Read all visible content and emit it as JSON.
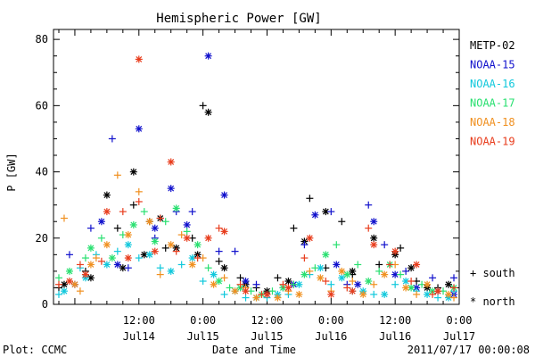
{
  "chart_data": {
    "type": "scatter",
    "title": "Hemispheric Power [GW]",
    "xlabel": "Date and Time",
    "ylabel": "P [GW]",
    "ylim": [
      0,
      83
    ],
    "xlim": [
      -4,
      72
    ],
    "x_units": "hours since 2011-07-14 00:00 UT",
    "grid": false,
    "legend_position": "right",
    "y_ticks": [
      0,
      20,
      40,
      60,
      80
    ],
    "x_ticks": [
      {
        "x": 12,
        "time": "12:00",
        "date": "Jul14"
      },
      {
        "x": 24,
        "time": "0:00",
        "date": "Jul15"
      },
      {
        "x": 36,
        "time": "12:00",
        "date": "Jul15"
      },
      {
        "x": 48,
        "time": "0:00",
        "date": "Jul16"
      },
      {
        "x": 60,
        "time": "12:00",
        "date": "Jul16"
      },
      {
        "x": 72,
        "time": "0:00",
        "date": "Jul17"
      }
    ],
    "marker_legend": [
      {
        "symbol": "+",
        "label": "south"
      },
      {
        "symbol": "*",
        "label": "north"
      }
    ],
    "series": [
      {
        "name": "METP-02",
        "color": "#000000",
        "south": [
          [
            -3,
            5
          ],
          [
            2,
            10
          ],
          [
            8,
            23
          ],
          [
            11,
            30
          ],
          [
            14,
            25
          ],
          [
            17,
            17
          ],
          [
            22,
            20
          ],
          [
            24,
            60
          ],
          [
            27,
            13
          ],
          [
            31,
            8
          ],
          [
            34,
            5
          ],
          [
            38,
            8
          ],
          [
            41,
            23
          ],
          [
            44,
            32
          ],
          [
            47,
            11
          ],
          [
            50,
            25
          ],
          [
            52,
            9
          ],
          [
            57,
            12
          ],
          [
            61,
            17
          ],
          [
            64,
            7
          ],
          [
            68,
            5
          ]
        ],
        "north": [
          [
            -2,
            6
          ],
          [
            3,
            8
          ],
          [
            6,
            33
          ],
          [
            9,
            11
          ],
          [
            11,
            40
          ],
          [
            13,
            15
          ],
          [
            16,
            26
          ],
          [
            19,
            17
          ],
          [
            23,
            15
          ],
          [
            25,
            58
          ],
          [
            28,
            11
          ],
          [
            32,
            6
          ],
          [
            36,
            4
          ],
          [
            40,
            7
          ],
          [
            43,
            19
          ],
          [
            47,
            28
          ],
          [
            52,
            10
          ],
          [
            56,
            20
          ],
          [
            60,
            15
          ],
          [
            63,
            11
          ],
          [
            66,
            5
          ],
          [
            70,
            6
          ]
        ]
      },
      {
        "name": "NOAA-15",
        "color": "#1010cc",
        "south": [
          [
            -1,
            15
          ],
          [
            3,
            23
          ],
          [
            7,
            50
          ],
          [
            10,
            11
          ],
          [
            15,
            20
          ],
          [
            19,
            28
          ],
          [
            22,
            28
          ],
          [
            27,
            16
          ],
          [
            30,
            16
          ],
          [
            34,
            6
          ],
          [
            39,
            5
          ],
          [
            43,
            18
          ],
          [
            48,
            28
          ],
          [
            51,
            6
          ],
          [
            55,
            30
          ],
          [
            58,
            18
          ],
          [
            62,
            10
          ],
          [
            67,
            8
          ],
          [
            71,
            8
          ]
        ],
        "north": [
          [
            0,
            6
          ],
          [
            5,
            25
          ],
          [
            8,
            12
          ],
          [
            12,
            53
          ],
          [
            15,
            23
          ],
          [
            18,
            35
          ],
          [
            21,
            24
          ],
          [
            25,
            75
          ],
          [
            28,
            33
          ],
          [
            32,
            7
          ],
          [
            36,
            3
          ],
          [
            41,
            6
          ],
          [
            45,
            27
          ],
          [
            49,
            12
          ],
          [
            53,
            6
          ],
          [
            56,
            25
          ],
          [
            60,
            9
          ],
          [
            64,
            5
          ],
          [
            68,
            4
          ],
          [
            71,
            3
          ]
        ]
      },
      {
        "name": "NOAA-16",
        "color": "#10c8dc",
        "south": [
          [
            -3,
            3
          ],
          [
            1,
            11
          ],
          [
            4,
            15
          ],
          [
            8,
            16
          ],
          [
            12,
            14
          ],
          [
            16,
            11
          ],
          [
            20,
            12
          ],
          [
            24,
            7
          ],
          [
            28,
            3
          ],
          [
            32,
            2
          ],
          [
            36,
            2
          ],
          [
            40,
            3
          ],
          [
            44,
            9
          ],
          [
            48,
            6
          ],
          [
            52,
            4
          ],
          [
            56,
            3
          ],
          [
            60,
            6
          ],
          [
            64,
            4
          ],
          [
            68,
            2
          ],
          [
            71,
            4
          ]
        ],
        "north": [
          [
            -2,
            4
          ],
          [
            2,
            8
          ],
          [
            6,
            12
          ],
          [
            10,
            18
          ],
          [
            14,
            15
          ],
          [
            18,
            10
          ],
          [
            22,
            14
          ],
          [
            26,
            9
          ],
          [
            30,
            4
          ],
          [
            34,
            2
          ],
          [
            38,
            3
          ],
          [
            42,
            6
          ],
          [
            46,
            11
          ],
          [
            50,
            8
          ],
          [
            54,
            4
          ],
          [
            58,
            3
          ],
          [
            62,
            7
          ],
          [
            66,
            3
          ],
          [
            70,
            2
          ]
        ]
      },
      {
        "name": "NOAA-17",
        "color": "#28e070",
        "south": [
          [
            -3,
            8
          ],
          [
            2,
            14
          ],
          [
            5,
            20
          ],
          [
            9,
            21
          ],
          [
            13,
            28
          ],
          [
            17,
            25
          ],
          [
            21,
            22
          ],
          [
            25,
            11
          ],
          [
            29,
            5
          ],
          [
            33,
            4
          ],
          [
            37,
            4
          ],
          [
            41,
            6
          ],
          [
            45,
            11
          ],
          [
            49,
            18
          ],
          [
            53,
            12
          ],
          [
            57,
            10
          ],
          [
            61,
            9
          ],
          [
            65,
            6
          ],
          [
            69,
            4
          ]
        ],
        "north": [
          [
            -1,
            10
          ],
          [
            3,
            17
          ],
          [
            7,
            14
          ],
          [
            11,
            24
          ],
          [
            15,
            19
          ],
          [
            19,
            29
          ],
          [
            23,
            18
          ],
          [
            27,
            7
          ],
          [
            31,
            5
          ],
          [
            35,
            3
          ],
          [
            39,
            5
          ],
          [
            43,
            9
          ],
          [
            47,
            15
          ],
          [
            51,
            9
          ],
          [
            55,
            7
          ],
          [
            59,
            12
          ],
          [
            63,
            5
          ],
          [
            67,
            4
          ],
          [
            71,
            5
          ]
        ]
      },
      {
        "name": "NOAA-18",
        "color": "#f09020",
        "south": [
          [
            -2,
            26
          ],
          [
            1,
            4
          ],
          [
            4,
            14
          ],
          [
            8,
            39
          ],
          [
            12,
            34
          ],
          [
            16,
            9
          ],
          [
            20,
            21
          ],
          [
            24,
            14
          ],
          [
            28,
            8
          ],
          [
            32,
            5
          ],
          [
            36,
            3
          ],
          [
            40,
            4
          ],
          [
            44,
            10
          ],
          [
            48,
            4
          ],
          [
            52,
            7
          ],
          [
            56,
            6
          ],
          [
            60,
            12
          ],
          [
            64,
            3
          ],
          [
            68,
            4
          ],
          [
            71,
            2
          ]
        ],
        "north": [
          [
            0,
            6
          ],
          [
            3,
            12
          ],
          [
            6,
            18
          ],
          [
            10,
            21
          ],
          [
            14,
            25
          ],
          [
            18,
            18
          ],
          [
            22,
            12
          ],
          [
            26,
            6
          ],
          [
            30,
            4
          ],
          [
            34,
            2
          ],
          [
            38,
            2
          ],
          [
            42,
            3
          ],
          [
            46,
            8
          ],
          [
            50,
            10
          ],
          [
            54,
            3
          ],
          [
            58,
            9
          ],
          [
            62,
            5
          ],
          [
            66,
            6
          ],
          [
            70,
            3
          ]
        ]
      },
      {
        "name": "NOAA-19",
        "color": "#e83c1c",
        "south": [
          [
            -3,
            6
          ],
          [
            1,
            12
          ],
          [
            5,
            13
          ],
          [
            9,
            28
          ],
          [
            12,
            31
          ],
          [
            16,
            26
          ],
          [
            19,
            16
          ],
          [
            23,
            14
          ],
          [
            27,
            23
          ],
          [
            31,
            6
          ],
          [
            35,
            3
          ],
          [
            39,
            6
          ],
          [
            43,
            14
          ],
          [
            47,
            7
          ],
          [
            51,
            5
          ],
          [
            55,
            23
          ],
          [
            59,
            12
          ],
          [
            63,
            7
          ],
          [
            67,
            3
          ],
          [
            71,
            5
          ]
        ],
        "north": [
          [
            -1,
            7
          ],
          [
            2,
            9
          ],
          [
            6,
            28
          ],
          [
            10,
            14
          ],
          [
            12,
            74
          ],
          [
            15,
            16
          ],
          [
            18,
            43
          ],
          [
            21,
            20
          ],
          [
            25,
            20
          ],
          [
            28,
            22
          ],
          [
            32,
            4
          ],
          [
            36,
            3
          ],
          [
            40,
            5
          ],
          [
            44,
            20
          ],
          [
            48,
            3
          ],
          [
            52,
            4
          ],
          [
            56,
            18
          ],
          [
            60,
            16
          ],
          [
            64,
            12
          ],
          [
            68,
            4
          ]
        ]
      }
    ]
  },
  "footer": {
    "left": "Plot: CCMC",
    "right": "2011/07/17 00:00:08"
  }
}
